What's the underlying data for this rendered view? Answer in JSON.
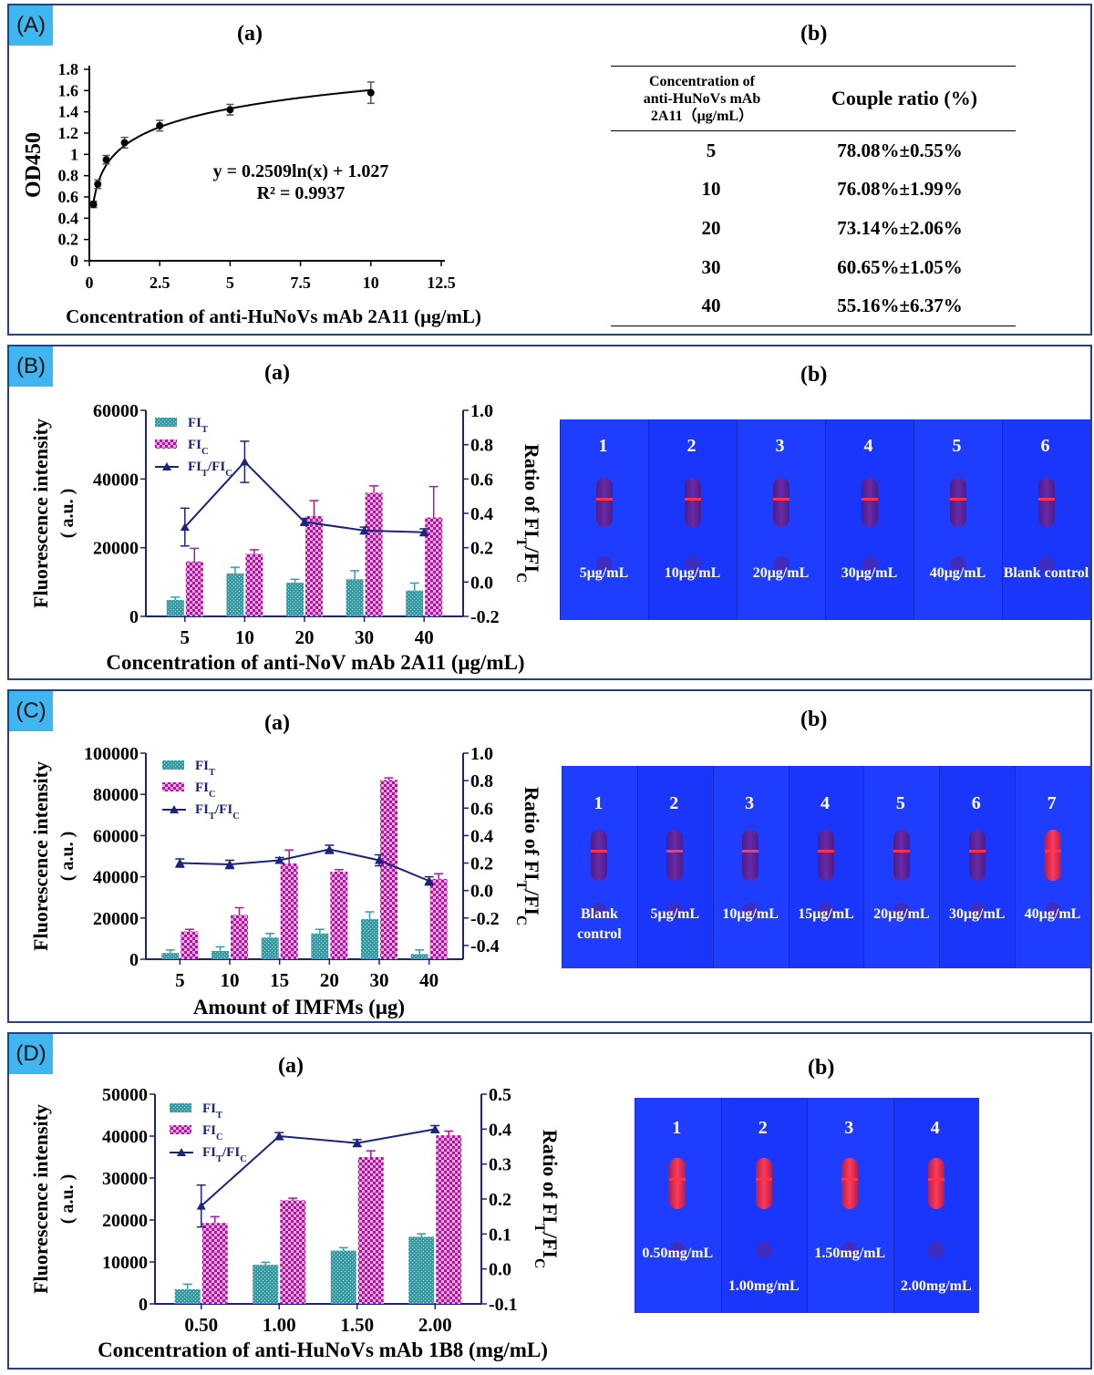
{
  "panels": [
    {
      "tag": "(A)"
    },
    {
      "tag": "(B)"
    },
    {
      "tag": "(C)"
    },
    {
      "tag": "(D)"
    }
  ],
  "panelA": {
    "sub_a": "(a)",
    "sub_b": "(b)",
    "equation": "y = 0.2509ln(x) + 1.027",
    "r2": "R² = 0.9937",
    "table": {
      "header_conc": [
        "Concentration of",
        "anti-HuNoVs mAb",
        "2A11（μg/mL）"
      ],
      "header_ratio": "Couple ratio (%)",
      "rows": [
        {
          "conc": "5",
          "ratio": "78.08%±0.55%"
        },
        {
          "conc": "10",
          "ratio": "76.08%±1.99%"
        },
        {
          "conc": "20",
          "ratio": "73.14%±2.06%"
        },
        {
          "conc": "30",
          "ratio": "60.65%±1.05%"
        },
        {
          "conc": "40",
          "ratio": "55.16%±6.37%"
        }
      ]
    }
  },
  "chart_data": [
    {
      "id": "A-a",
      "type": "scatter",
      "title": "",
      "xlabel": "Concentration of anti-HuNoVs mAb 2A11 (μg/mL)",
      "ylabel": "OD450",
      "xlim": [
        0,
        12.5
      ],
      "ylim": [
        0,
        1.8
      ],
      "xticks": [
        0,
        2.5,
        5,
        7.5,
        10,
        12.5
      ],
      "xtick_labels": [
        "0",
        "2.5",
        "5",
        "7.5",
        "10",
        "12.5"
      ],
      "yticks": [
        0,
        0.2,
        0.4,
        0.6,
        0.8,
        1,
        1.2,
        1.4,
        1.6,
        1.8
      ],
      "ytick_labels": [
        "0",
        "0.2",
        "0.4",
        "0.6",
        "0.8",
        "1",
        "1.2",
        "1.4",
        "1.6",
        "1.8"
      ],
      "x": [
        0.15,
        0.3,
        0.6,
        1.25,
        2.5,
        5,
        10
      ],
      "y": [
        0.53,
        0.72,
        0.95,
        1.11,
        1.27,
        1.42,
        1.58
      ],
      "err": [
        0.03,
        0.04,
        0.04,
        0.05,
        0.05,
        0.05,
        0.1
      ],
      "fit": {
        "type": "log",
        "a": 0.2509,
        "b": 1.027
      }
    },
    {
      "id": "B-a",
      "type": "bar",
      "xlabel": "Concentration of anti-NoV mAb 2A11 (μg/mL)",
      "ylabel": "Fluorescence intensity",
      "ylabel_unit": "( a.u. )",
      "y2label": "Ratio of FIT/FIC",
      "categories": [
        "5",
        "10",
        "20",
        "30",
        "40"
      ],
      "ylim": [
        0,
        60000
      ],
      "yticks": [
        0,
        20000,
        40000,
        60000
      ],
      "ytick_labels": [
        "0",
        "20000",
        "40000",
        "60000"
      ],
      "y2lim": [
        -0.2,
        1.0
      ],
      "y2ticks": [
        -0.2,
        0,
        0.2,
        0.4,
        0.6,
        0.8,
        1.0
      ],
      "y2tick_labels": [
        "-0.2",
        "0.0",
        "0.2",
        "0.4",
        "0.6",
        "0.8",
        "1.0"
      ],
      "legend": [
        "FIT",
        "FIC",
        "FIT/FIC"
      ],
      "legend_position": "top-left",
      "series": [
        {
          "name": "FIT",
          "values": [
            4800,
            12500,
            9800,
            10800,
            7500
          ],
          "err": [
            800,
            1800,
            1000,
            2500,
            2200
          ]
        },
        {
          "name": "FIC",
          "values": [
            16000,
            18200,
            29200,
            36000,
            28800
          ],
          "err": [
            3800,
            1200,
            4500,
            2000,
            9000
          ]
        },
        {
          "name": "FIT/FIC",
          "values": [
            0.32,
            0.7,
            0.35,
            0.3,
            0.29
          ],
          "err": [
            0.11,
            0.12,
            0.02,
            0.02,
            0.02
          ]
        }
      ]
    },
    {
      "id": "C-a",
      "type": "bar",
      "xlabel": "Amount of IMFMs (μg)",
      "ylabel": "Fluorescence intensity",
      "ylabel_unit": "( a.u. )",
      "y2label": "Ratio of FIT/FIC",
      "categories": [
        "5",
        "10",
        "15",
        "20",
        "30",
        "40"
      ],
      "ylim": [
        0,
        100000
      ],
      "yticks": [
        0,
        20000,
        40000,
        60000,
        80000,
        100000
      ],
      "ytick_labels": [
        "0",
        "20000",
        "40000",
        "60000",
        "80000",
        "100000"
      ],
      "y2lim": [
        -0.5,
        1.0
      ],
      "y2ticks": [
        -0.4,
        -0.2,
        0,
        0.2,
        0.4,
        0.6,
        0.8,
        1.0
      ],
      "y2tick_labels": [
        "-0.4",
        "-0.2",
        "0.0",
        "0.2",
        "0.4",
        "0.6",
        "0.8",
        "1.0"
      ],
      "legend": [
        "FIT",
        "FIC",
        "FIT/FIC"
      ],
      "legend_position": "top-left",
      "series": [
        {
          "name": "FIT",
          "values": [
            3000,
            4000,
            10500,
            12500,
            19500,
            2500
          ],
          "err": [
            1500,
            2000,
            2000,
            2000,
            3500,
            2000
          ]
        },
        {
          "name": "FIC",
          "values": [
            13500,
            21500,
            46500,
            42500,
            87000,
            39000
          ],
          "err": [
            1000,
            3500,
            6500,
            1000,
            1000,
            2500
          ]
        },
        {
          "name": "FIT/FIC",
          "values": [
            0.2,
            0.19,
            0.22,
            0.3,
            0.22,
            0.07
          ],
          "err": [
            0.03,
            0.03,
            0.02,
            0.03,
            0.04,
            0.03
          ]
        }
      ]
    },
    {
      "id": "D-a",
      "type": "bar",
      "xlabel": "Concentration of anti-HuNoVs mAb 1B8 (mg/mL)",
      "ylabel": "Fluorescence intensity",
      "ylabel_unit": "( a.u. )",
      "y2label": "Ratio of FIT/FIC",
      "categories": [
        "0.50",
        "1.00",
        "1.50",
        "2.00"
      ],
      "ylim": [
        0,
        50000
      ],
      "yticks": [
        0,
        10000,
        20000,
        30000,
        40000,
        50000
      ],
      "ytick_labels": [
        "0",
        "10000",
        "20000",
        "30000",
        "40000",
        "50000"
      ],
      "y2lim": [
        -0.1,
        0.5
      ],
      "y2ticks": [
        -0.1,
        0,
        0.1,
        0.2,
        0.3,
        0.4,
        0.5
      ],
      "y2tick_labels": [
        "-0.1",
        "0.0",
        "0.1",
        "0.2",
        "0.3",
        "0.4",
        "0.5"
      ],
      "legend": [
        "FIT",
        "FIC",
        "FIT/FIC"
      ],
      "legend_position": "top-left",
      "series": [
        {
          "name": "FIT",
          "values": [
            3500,
            9300,
            12700,
            16000
          ],
          "err": [
            1200,
            600,
            700,
            700
          ]
        },
        {
          "name": "FIC",
          "values": [
            19300,
            24700,
            35000,
            40200
          ],
          "err": [
            1500,
            500,
            1500,
            1000
          ]
        },
        {
          "name": "FIT/FIC",
          "values": [
            0.18,
            0.38,
            0.36,
            0.4
          ],
          "err": [
            0.06,
            0.01,
            0.01,
            0.01
          ]
        }
      ]
    }
  ],
  "photos": {
    "B": {
      "sub": "(b)",
      "lanes": [
        "1",
        "2",
        "3",
        "4",
        "5",
        "6"
      ],
      "labels": [
        "5μg/mL",
        "10μg/mL",
        "20μg/mL",
        "30μg/mL",
        "40μg/mL",
        "Blank control"
      ]
    },
    "C": {
      "sub": "(b)",
      "lanes": [
        "1",
        "2",
        "3",
        "4",
        "5",
        "6",
        "7"
      ],
      "labels": [
        "Blank control",
        "5μg/mL",
        "10μg/mL",
        "15μg/mL",
        "20μg/mL",
        "30μg/mL",
        "40μg/mL"
      ]
    },
    "D": {
      "sub": "(b)",
      "lanes": [
        "1",
        "2",
        "3",
        "4"
      ],
      "labels": [
        "0.50mg/mL",
        "1.00mg/mL",
        "1.50mg/mL",
        "2.00mg/mL"
      ]
    }
  },
  "colors": {
    "frame": "#2a3f7c",
    "tag": "#3fb6ef",
    "fit": "#2e9fa8",
    "fic": "#b0149a",
    "ratio": "#1a237e",
    "photo": "#1c38ff"
  }
}
